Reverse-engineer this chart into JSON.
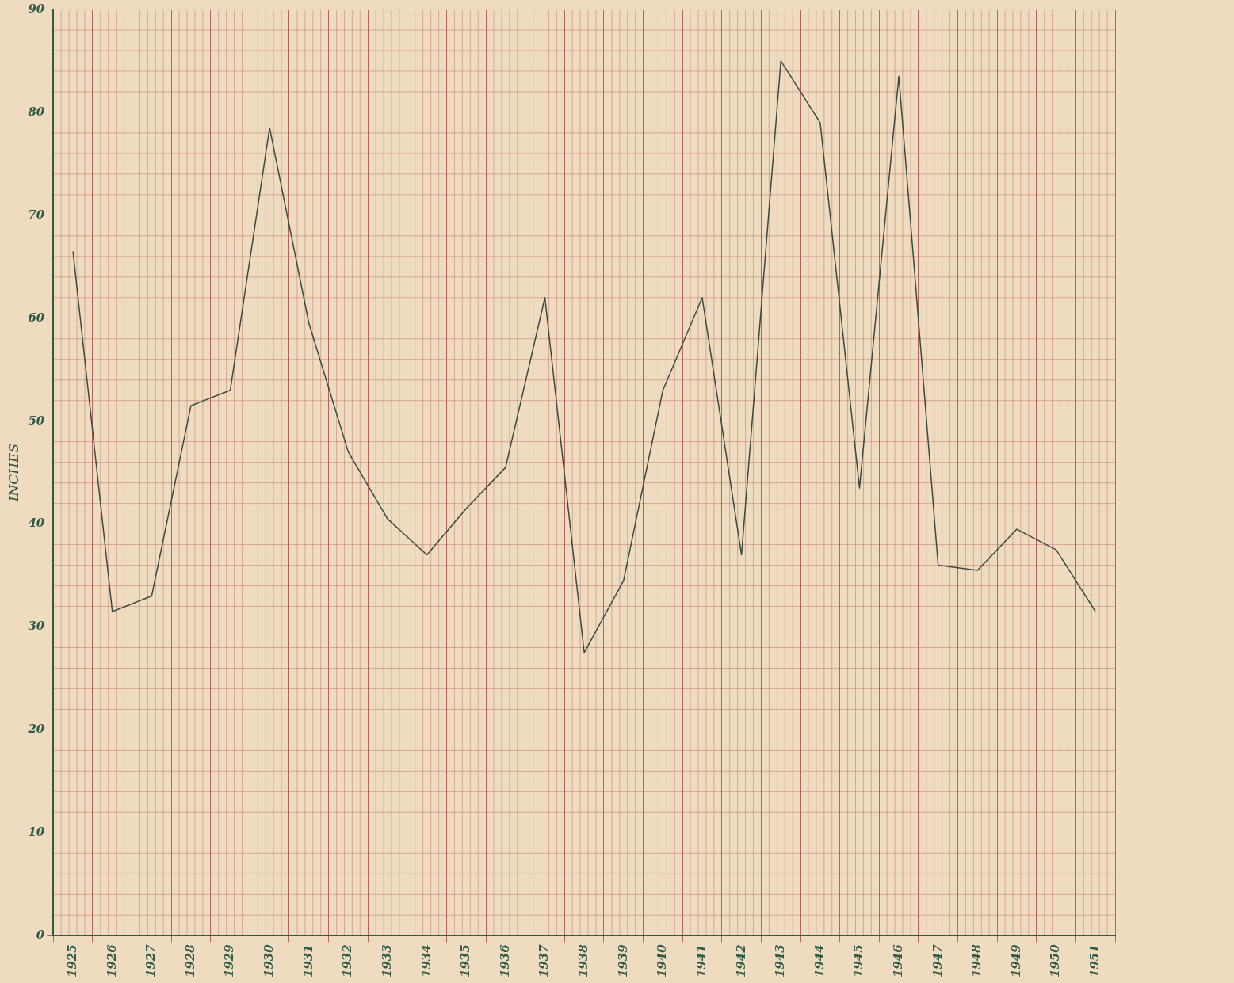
{
  "chart_data": {
    "type": "line",
    "ylabel": "INCHES",
    "categories": [
      "1925",
      "1926",
      "1927",
      "1928",
      "1929",
      "1930",
      "1931",
      "1932",
      "1933",
      "1934",
      "1935",
      "1936",
      "1937",
      "1938",
      "1939",
      "1940",
      "1941",
      "1942",
      "1943",
      "1944",
      "1945",
      "1946",
      "1947",
      "1948",
      "1949",
      "1950",
      "1951"
    ],
    "series": [
      {
        "color": "#3a4a40",
        "values": [
          66.5,
          31.5,
          33,
          51.5,
          53,
          78.5,
          59.5,
          47,
          40.5,
          37,
          41.5,
          45.5,
          62,
          27.5,
          34.5,
          53,
          62,
          37,
          85,
          79,
          43.5,
          83.5,
          36,
          35.5,
          39.5,
          37.5,
          31.5
        ]
      }
    ],
    "ylim": [
      0,
      90
    ],
    "yticks": [
      0,
      10,
      20,
      30,
      40,
      50,
      60,
      70,
      80,
      90
    ],
    "grid": true,
    "legend": false,
    "marker": "none",
    "line_style": "solid"
  }
}
